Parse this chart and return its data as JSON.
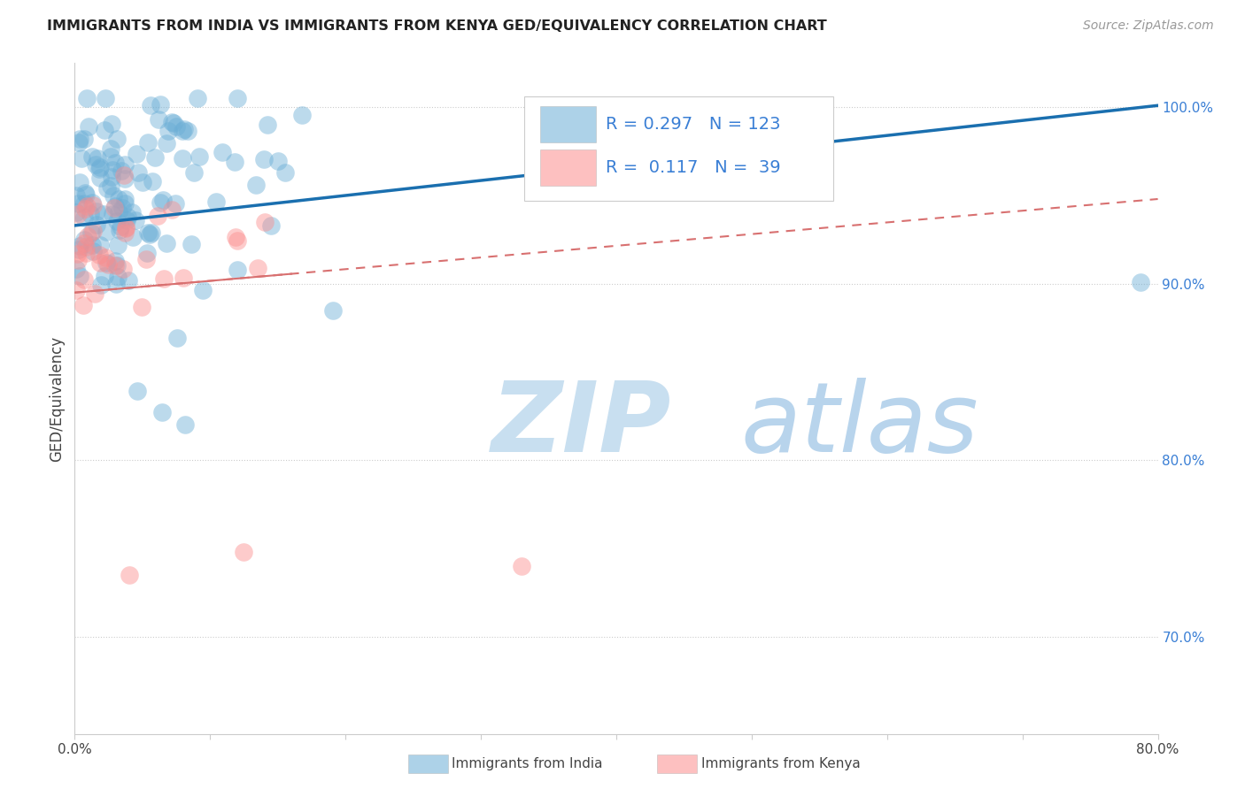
{
  "title": "IMMIGRANTS FROM INDIA VS IMMIGRANTS FROM KENYA GED/EQUIVALENCY CORRELATION CHART",
  "source": "Source: ZipAtlas.com",
  "ylabel": "GED/Equivalency",
  "xlim": [
    0.0,
    0.8
  ],
  "ylim": [
    0.645,
    1.025
  ],
  "x_ticks": [
    0.0,
    0.1,
    0.2,
    0.3,
    0.4,
    0.5,
    0.6,
    0.7,
    0.8
  ],
  "x_tick_labels": [
    "0.0%",
    "",
    "",
    "",
    "",
    "",
    "",
    "",
    "80.0%"
  ],
  "y_ticks_right": [
    0.7,
    0.8,
    0.9,
    1.0
  ],
  "y_tick_labels_right": [
    "70.0%",
    "80.0%",
    "90.0%",
    "100.0%"
  ],
  "india_color": "#6baed6",
  "kenya_color": "#fc8d8d",
  "india_line_color": "#1a6faf",
  "kenya_line_color": "#d87070",
  "R_india": 0.297,
  "N_india": 123,
  "R_kenya": 0.117,
  "N_kenya": 39,
  "legend_label_india": "Immigrants from India",
  "legend_label_kenya": "Immigrants from Kenya",
  "watermark_zip": "ZIP",
  "watermark_atlas": "atlas",
  "watermark_color_zip": "#c8dff0",
  "watermark_color_atlas": "#b8d4ec"
}
